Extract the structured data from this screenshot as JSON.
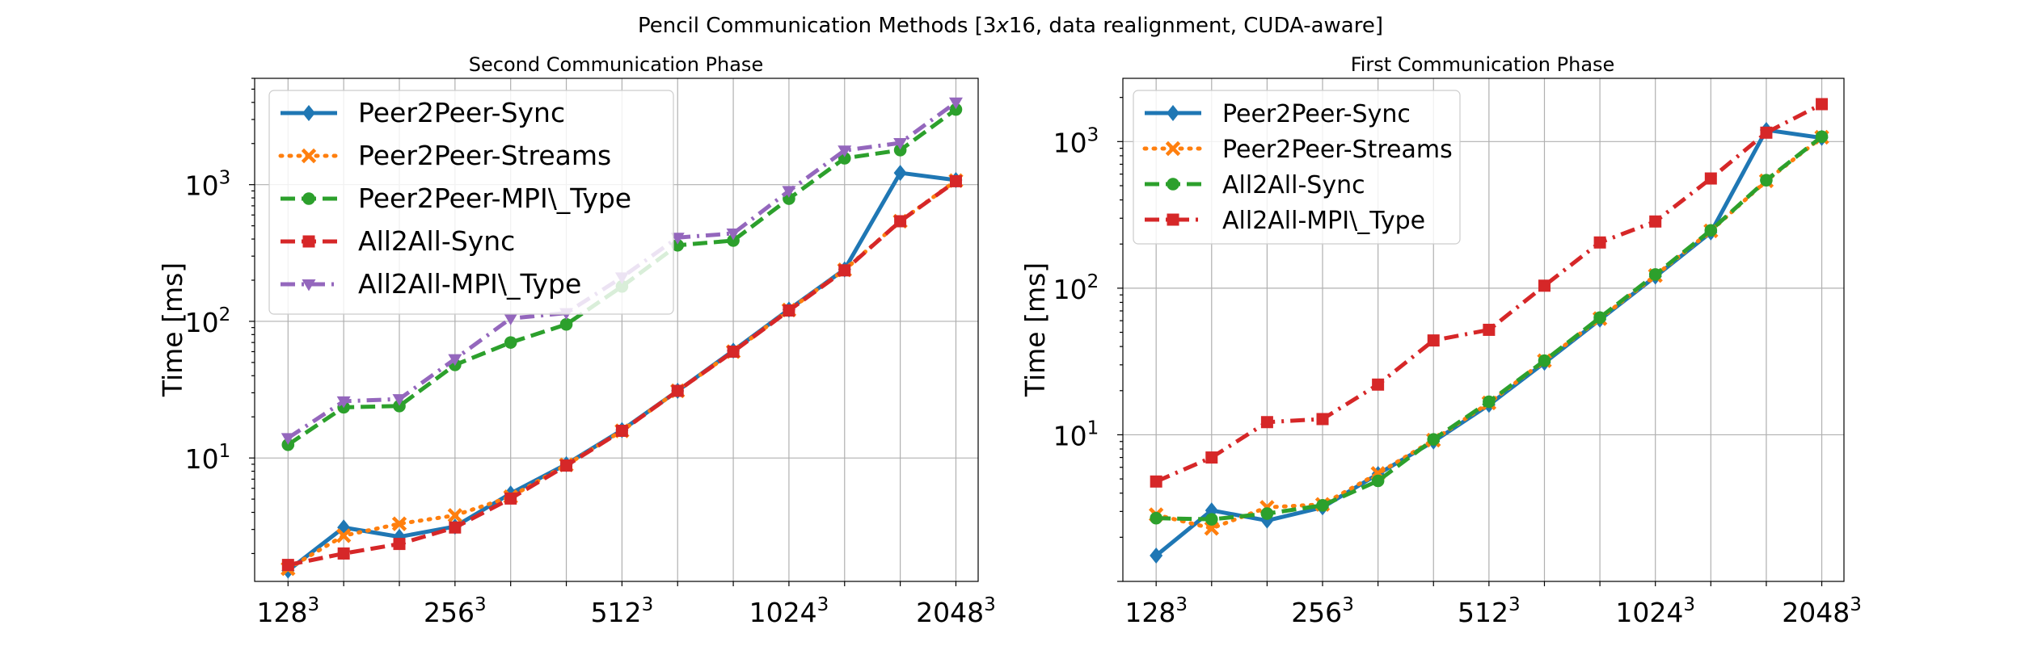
{
  "figure": {
    "title": "Pencil Communication Methods [3x16, data realignment, CUDA-aware]",
    "title_pre": "Pencil Communication Methods [3",
    "title_italic": "x",
    "title_post": "16, data realignment, CUDA-aware]"
  },
  "x_ticks": [
    {
      "base": "128",
      "exp": "3",
      "index": 0
    },
    {
      "base": "256",
      "exp": "3",
      "index": 3
    },
    {
      "base": "512",
      "exp": "3",
      "index": 6
    },
    {
      "base": "1024",
      "exp": "3",
      "index": 9
    },
    {
      "base": "2048",
      "exp": "3",
      "index": 12
    }
  ],
  "y_ticks": [
    {
      "base": "10",
      "exp": "1",
      "value": 10
    },
    {
      "base": "10",
      "exp": "2",
      "value": 100
    },
    {
      "base": "10",
      "exp": "3",
      "value": 1000
    }
  ],
  "chart_data": [
    {
      "type": "line",
      "title": "Second Communication Phase",
      "ylabel": "Time [ms]",
      "xlabel": "",
      "yscale": "log",
      "ylim": [
        1.25,
        6000
      ],
      "xlim": [
        -0.6,
        12.4
      ],
      "grid": true,
      "legend_position": "top-left",
      "x": [
        0,
        1,
        2,
        3,
        4,
        5,
        6,
        7,
        8,
        9,
        10,
        11,
        12
      ],
      "series": [
        {
          "name": "Peer2Peer-Sync",
          "color": "#1f77b4",
          "marker": "diamond",
          "dash": "solid",
          "values": [
            1.5,
            3.1,
            2.65,
            3.15,
            5.5,
            9,
            16,
            31,
            61,
            122,
            240,
            1220,
            1080
          ]
        },
        {
          "name": "Peer2Peer-Streams",
          "color": "#ff7f0e",
          "marker": "x",
          "dash": "dotted",
          "values": [
            1.55,
            2.7,
            3.3,
            3.8,
            5.2,
            8.9,
            15.8,
            31,
            60,
            121,
            238,
            540,
            1070
          ]
        },
        {
          "name": "Peer2Peer-MPI\\_Type",
          "color": "#2ca02c",
          "marker": "circle",
          "dash": "dashed",
          "values": [
            12.5,
            23.5,
            24,
            48,
            70,
            95,
            180,
            360,
            390,
            790,
            1560,
            1790,
            3550
          ]
        },
        {
          "name": "All2All-Sync",
          "color": "#d62728",
          "marker": "square",
          "dash": "dashed",
          "values": [
            1.65,
            2.0,
            2.35,
            3.1,
            5.05,
            8.8,
            15.8,
            31,
            60,
            120,
            236,
            540,
            1060
          ]
        },
        {
          "name": "All2All-MPI\\_Type",
          "color": "#9467bd",
          "marker": "triangle-down",
          "dash": "dashdot",
          "values": [
            14,
            26,
            27,
            53,
            105,
            115,
            210,
            410,
            440,
            900,
            1780,
            2020,
            4000
          ]
        }
      ]
    },
    {
      "type": "line",
      "title": "First Communication Phase",
      "ylabel": "Time [ms]",
      "xlabel": "",
      "yscale": "log",
      "ylim": [
        1.0,
        2700
      ],
      "xlim": [
        -0.6,
        12.4
      ],
      "grid": true,
      "legend_position": "top-left",
      "x": [
        0,
        1,
        2,
        3,
        4,
        5,
        6,
        7,
        8,
        9,
        10,
        11,
        12
      ],
      "series": [
        {
          "name": "Peer2Peer-Sync",
          "color": "#1f77b4",
          "marker": "diamond",
          "dash": "solid",
          "values": [
            1.5,
            3.05,
            2.6,
            3.2,
            5.4,
            9,
            16,
            31,
            61,
            120,
            240,
            1200,
            1060
          ]
        },
        {
          "name": "Peer2Peer-Streams",
          "color": "#ff7f0e",
          "marker": "x",
          "dash": "dotted",
          "values": [
            2.85,
            2.3,
            3.2,
            3.35,
            5.45,
            9.2,
            16.5,
            32,
            62,
            122,
            246,
            540,
            1070
          ]
        },
        {
          "name": "All2All-Sync",
          "color": "#2ca02c",
          "marker": "circle",
          "dash": "dashed",
          "values": [
            2.7,
            2.65,
            2.9,
            3.3,
            4.85,
            9.3,
            16.8,
            32,
            63,
            124,
            248,
            545,
            1080
          ]
        },
        {
          "name": "All2All-MPI\\_Type",
          "color": "#d62728",
          "marker": "square",
          "dash": "dashdot",
          "values": [
            4.8,
            7.0,
            12.2,
            12.8,
            22,
            44,
            52,
            104,
            205,
            285,
            560,
            1150,
            1800
          ]
        }
      ]
    }
  ]
}
